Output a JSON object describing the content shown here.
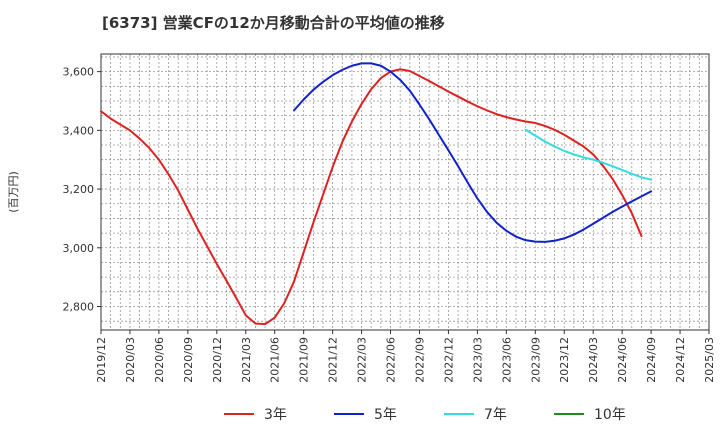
{
  "chart_data": {
    "type": "line",
    "title": "[6373]  営業CFの12か月移動合計の平均値の推移",
    "ylabel": "(百万円)",
    "xlabel": "",
    "ylim": [
      2720,
      3660
    ],
    "xlim": [
      "2019-12",
      "2025-03"
    ],
    "y_ticks": [
      2800,
      3000,
      3200,
      3400,
      3600
    ],
    "y_tick_labels": [
      "2,800",
      "3,000",
      "3,200",
      "3,400",
      "3,600"
    ],
    "x_ticks": [
      "2019-12",
      "2020-03",
      "2020-06",
      "2020-09",
      "2020-12",
      "2021-03",
      "2021-06",
      "2021-09",
      "2021-12",
      "2022-03",
      "2022-06",
      "2022-09",
      "2022-12",
      "2023-03",
      "2023-06",
      "2023-09",
      "2023-12",
      "2024-03",
      "2024-06",
      "2024-09",
      "2024-12",
      "2025-03"
    ],
    "x_tick_labels": [
      "2019/12",
      "2020/03",
      "2020/06",
      "2020/09",
      "2020/12",
      "2021/03",
      "2021/06",
      "2021/09",
      "2021/12",
      "2022/03",
      "2022/06",
      "2022/09",
      "2022/12",
      "2023/03",
      "2023/06",
      "2023/09",
      "2023/12",
      "2024/03",
      "2024/06",
      "2024/09",
      "2024/12",
      "2025/03"
    ],
    "grid": true,
    "legend_position": "bottom",
    "series": [
      {
        "name": "3年",
        "color": "#dd2222",
        "points": [
          [
            "2019-12",
            3465
          ],
          [
            "2020-01",
            3440
          ],
          [
            "2020-02",
            3420
          ],
          [
            "2020-03",
            3400
          ],
          [
            "2020-04",
            3372
          ],
          [
            "2020-05",
            3340
          ],
          [
            "2020-06",
            3300
          ],
          [
            "2020-07",
            3250
          ],
          [
            "2020-08",
            3195
          ],
          [
            "2020-09",
            3130
          ],
          [
            "2020-10",
            3065
          ],
          [
            "2020-11",
            3005
          ],
          [
            "2020-12",
            2945
          ],
          [
            "2021-01",
            2888
          ],
          [
            "2021-02",
            2830
          ],
          [
            "2021-03",
            2770
          ],
          [
            "2021-04",
            2742
          ],
          [
            "2021-05",
            2740
          ],
          [
            "2021-06",
            2762
          ],
          [
            "2021-07",
            2812
          ],
          [
            "2021-08",
            2885
          ],
          [
            "2021-09",
            2985
          ],
          [
            "2021-10",
            3085
          ],
          [
            "2021-11",
            3180
          ],
          [
            "2021-12",
            3275
          ],
          [
            "2022-01",
            3360
          ],
          [
            "2022-02",
            3430
          ],
          [
            "2022-03",
            3490
          ],
          [
            "2022-04",
            3540
          ],
          [
            "2022-05",
            3578
          ],
          [
            "2022-06",
            3600
          ],
          [
            "2022-07",
            3608
          ],
          [
            "2022-08",
            3602
          ],
          [
            "2022-09",
            3585
          ],
          [
            "2022-10",
            3568
          ],
          [
            "2022-11",
            3550
          ],
          [
            "2022-12",
            3532
          ],
          [
            "2023-01",
            3515
          ],
          [
            "2023-02",
            3498
          ],
          [
            "2023-03",
            3482
          ],
          [
            "2023-04",
            3468
          ],
          [
            "2023-05",
            3455
          ],
          [
            "2023-06",
            3445
          ],
          [
            "2023-07",
            3437
          ],
          [
            "2023-08",
            3430
          ],
          [
            "2023-09",
            3425
          ],
          [
            "2023-10",
            3415
          ],
          [
            "2023-11",
            3402
          ],
          [
            "2023-12",
            3385
          ],
          [
            "2024-01",
            3365
          ],
          [
            "2024-02",
            3345
          ],
          [
            "2024-03",
            3318
          ],
          [
            "2024-04",
            3280
          ],
          [
            "2024-05",
            3235
          ],
          [
            "2024-06",
            3180
          ],
          [
            "2024-07",
            3118
          ],
          [
            "2024-08",
            3040
          ]
        ]
      },
      {
        "name": "5年",
        "color": "#1122cc",
        "points": [
          [
            "2021-08",
            3468
          ],
          [
            "2021-09",
            3505
          ],
          [
            "2021-10",
            3538
          ],
          [
            "2021-11",
            3565
          ],
          [
            "2021-12",
            3588
          ],
          [
            "2022-01",
            3606
          ],
          [
            "2022-02",
            3620
          ],
          [
            "2022-03",
            3628
          ],
          [
            "2022-04",
            3628
          ],
          [
            "2022-05",
            3620
          ],
          [
            "2022-06",
            3600
          ],
          [
            "2022-07",
            3572
          ],
          [
            "2022-08",
            3535
          ],
          [
            "2022-09",
            3488
          ],
          [
            "2022-10",
            3438
          ],
          [
            "2022-11",
            3385
          ],
          [
            "2022-12",
            3332
          ],
          [
            "2023-01",
            3278
          ],
          [
            "2023-02",
            3222
          ],
          [
            "2023-03",
            3168
          ],
          [
            "2023-04",
            3122
          ],
          [
            "2023-05",
            3085
          ],
          [
            "2023-06",
            3058
          ],
          [
            "2023-07",
            3038
          ],
          [
            "2023-08",
            3026
          ],
          [
            "2023-09",
            3021
          ],
          [
            "2023-10",
            3020
          ],
          [
            "2023-11",
            3024
          ],
          [
            "2023-12",
            3032
          ],
          [
            "2024-01",
            3045
          ],
          [
            "2024-02",
            3062
          ],
          [
            "2024-03",
            3082
          ],
          [
            "2024-04",
            3102
          ],
          [
            "2024-05",
            3122
          ],
          [
            "2024-06",
            3140
          ],
          [
            "2024-07",
            3158
          ],
          [
            "2024-08",
            3175
          ],
          [
            "2024-09",
            3192
          ]
        ]
      },
      {
        "name": "7年",
        "color": "#33dddd",
        "points": [
          [
            "2023-08",
            3402
          ],
          [
            "2023-09",
            3382
          ],
          [
            "2023-10",
            3362
          ],
          [
            "2023-11",
            3345
          ],
          [
            "2023-12",
            3330
          ],
          [
            "2024-01",
            3318
          ],
          [
            "2024-02",
            3308
          ],
          [
            "2024-03",
            3300
          ],
          [
            "2024-04",
            3290
          ],
          [
            "2024-05",
            3278
          ],
          [
            "2024-06",
            3265
          ],
          [
            "2024-07",
            3252
          ],
          [
            "2024-08",
            3240
          ],
          [
            "2024-09",
            3232
          ]
        ]
      },
      {
        "name": "10年",
        "color": "#228822",
        "points": []
      }
    ]
  }
}
